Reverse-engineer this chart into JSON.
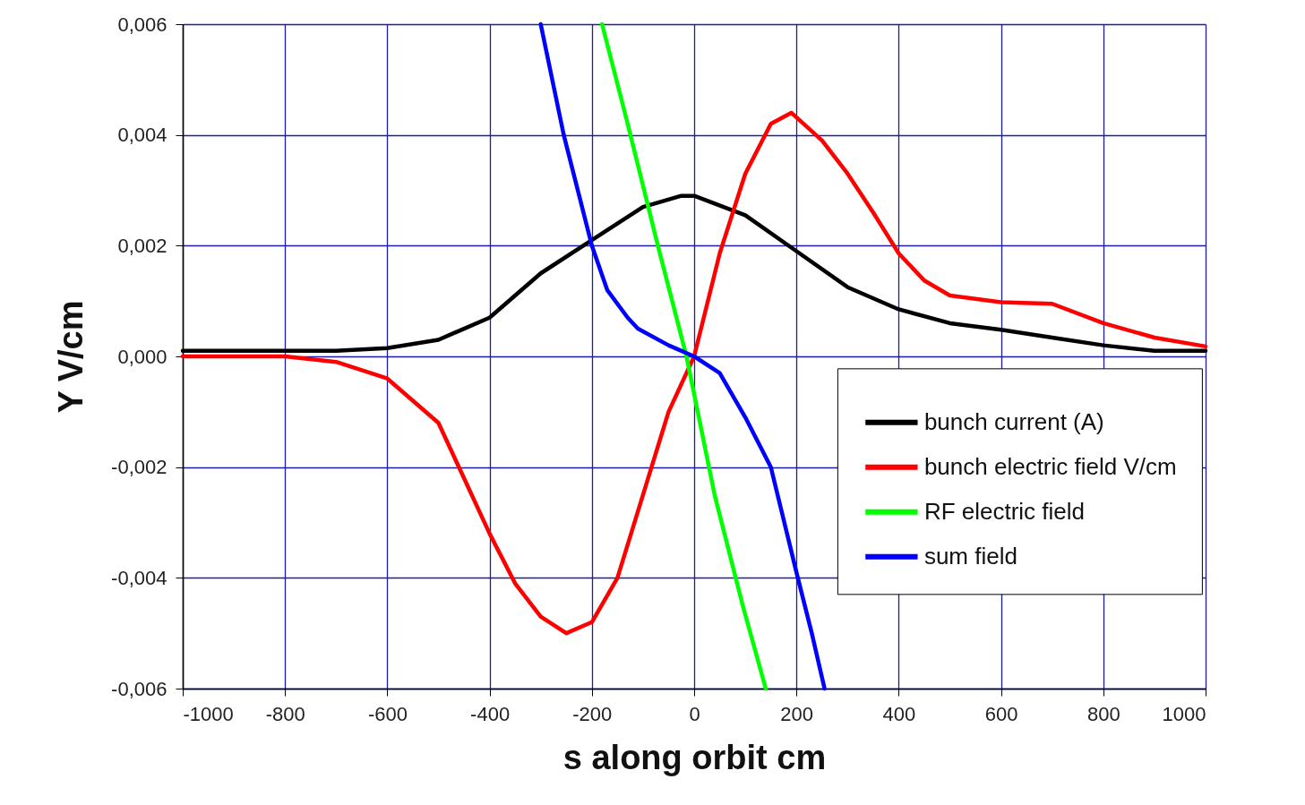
{
  "chart_data": {
    "type": "line",
    "xlabel": "s along orbit cm",
    "ylabel": "Y V/cm",
    "xlim": [
      -1000,
      1000
    ],
    "xticks": [
      -1000,
      -800,
      -600,
      -400,
      -200,
      0,
      200,
      400,
      600,
      800,
      1000
    ],
    "ylim": [
      -0.006,
      0.006
    ],
    "yticks": [
      {
        "value": -0.006,
        "label": "-0,006"
      },
      {
        "value": -0.004,
        "label": "-0,004"
      },
      {
        "value": -0.002,
        "label": "-0,002"
      },
      {
        "value": 0,
        "label": "0,000"
      },
      {
        "value": 0.002,
        "label": "0,002"
      },
      {
        "value": 0.004,
        "label": "0,004"
      },
      {
        "value": 0.006,
        "label": "0,006"
      }
    ],
    "grid": true,
    "legend": "bottom right",
    "line_style": "solid",
    "marker": "none",
    "series": [
      {
        "name": "bunch current (A)",
        "color": "#000000",
        "x": [
          -1000,
          -900,
          -800,
          -700,
          -600,
          -500,
          -400,
          -300,
          -200,
          -100,
          -25,
          0,
          100,
          200,
          300,
          400,
          500,
          600,
          700,
          800,
          900,
          1000
        ],
        "values": [
          0.0001,
          0.0001,
          0.0001,
          0.0001,
          0.00015,
          0.0003,
          0.0007,
          0.0015,
          0.0021,
          0.0027,
          0.0029,
          0.0029,
          0.00255,
          0.0019,
          0.00125,
          0.00085,
          0.0006,
          0.00048,
          0.00034,
          0.0002,
          0.0001,
          0.0001
        ]
      },
      {
        "name": "bunch electric field V/cm",
        "color": "#ff0000",
        "x": [
          -1000,
          -900,
          -800,
          -700,
          -600,
          -500,
          -450,
          -400,
          -350,
          -300,
          -250,
          -200,
          -150,
          -100,
          -50,
          0,
          50,
          100,
          150,
          190,
          250,
          300,
          350,
          400,
          450,
          500,
          600,
          700,
          800,
          900,
          1000
        ],
        "values": [
          0,
          0,
          0,
          -0.0001,
          -0.0004,
          -0.0012,
          -0.0022,
          -0.0032,
          -0.0041,
          -0.0047,
          -0.005,
          -0.0048,
          -0.004,
          -0.0025,
          -0.001,
          0,
          0.00186,
          0.0033,
          0.0042,
          0.0044,
          0.0039,
          0.0033,
          0.0026,
          0.00186,
          0.00137,
          0.0011,
          0.00098,
          0.00095,
          0.0006,
          0.00034,
          0.00018
        ]
      },
      {
        "name": "RF electric field",
        "color": "#00ff00",
        "x": [
          -180,
          -130,
          -71,
          -15,
          40,
          95,
          140
        ],
        "values": [
          0.006,
          0.0042,
          0.002,
          0,
          -0.0025,
          -0.0045,
          -0.006
        ]
      },
      {
        "name": "sum field",
        "color": "#0000ff",
        "x": [
          -300,
          -255,
          -200,
          -170,
          -130,
          -110,
          -50,
          0,
          50,
          100,
          150,
          200,
          230,
          255
        ],
        "values": [
          0.006,
          0.004,
          0.002,
          0.0012,
          0.0007,
          0.0005,
          0.0002,
          0,
          -0.0003,
          -0.0011,
          -0.002,
          -0.0039,
          -0.005,
          -0.006
        ]
      }
    ]
  }
}
